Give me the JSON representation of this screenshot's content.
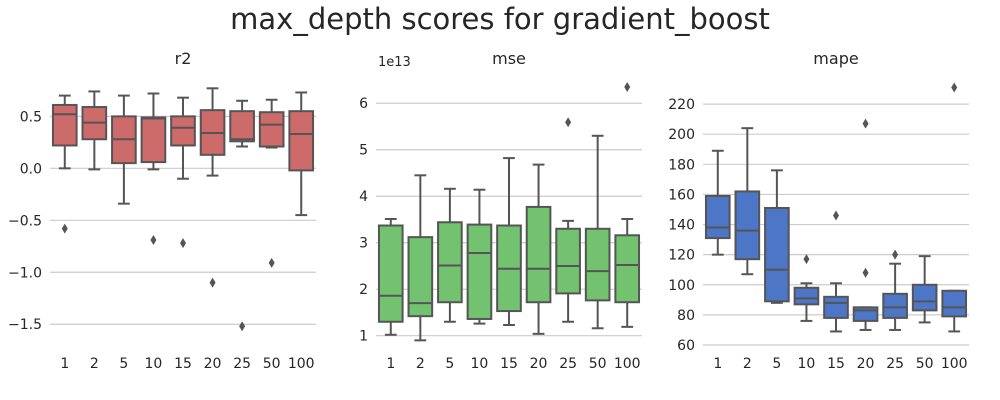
{
  "suptitle": "max_depth scores for gradient_boost",
  "colors": {
    "r2": "#cd6a6a",
    "mse": "#72c26f",
    "mape": "#4d76c6",
    "stroke": "#555555",
    "grid": "#cccccc"
  },
  "chart_data": [
    {
      "type": "box",
      "title": "r2",
      "categories": [
        "1",
        "2",
        "5",
        "10",
        "15",
        "20",
        "25",
        "50",
        "100"
      ],
      "ylim": [
        -1.7,
        0.85
      ],
      "yticks": [
        -1.5,
        -1.0,
        -0.5,
        0.0,
        0.5
      ],
      "ytick_labels": [
        "−1.5",
        "−1.0",
        "−0.5",
        "0.0",
        "0.5"
      ],
      "offset_label": "",
      "grid": true,
      "boxes": [
        {
          "lw": 0.0,
          "q1": 0.22,
          "med": 0.52,
          "q3": 0.61,
          "hw": 0.7,
          "fliers": [
            -0.58
          ]
        },
        {
          "lw": -0.01,
          "q1": 0.28,
          "med": 0.44,
          "q3": 0.59,
          "hw": 0.74,
          "fliers": []
        },
        {
          "lw": -0.34,
          "q1": 0.05,
          "med": 0.28,
          "q3": 0.5,
          "hw": 0.7,
          "fliers": []
        },
        {
          "lw": -0.01,
          "q1": 0.06,
          "med": 0.48,
          "q3": 0.49,
          "hw": 0.72,
          "fliers": [
            -0.69
          ]
        },
        {
          "lw": -0.1,
          "q1": 0.22,
          "med": 0.39,
          "q3": 0.5,
          "hw": 0.68,
          "fliers": [
            -0.72
          ]
        },
        {
          "lw": -0.07,
          "q1": 0.13,
          "med": 0.34,
          "q3": 0.56,
          "hw": 0.77,
          "fliers": [
            -1.1
          ]
        },
        {
          "lw": 0.21,
          "q1": 0.26,
          "med": 0.28,
          "q3": 0.55,
          "hw": 0.65,
          "fliers": [
            -1.52
          ]
        },
        {
          "lw": 0.2,
          "q1": 0.21,
          "med": 0.42,
          "q3": 0.54,
          "hw": 0.66,
          "fliers": [
            -0.91
          ]
        },
        {
          "lw": -0.45,
          "q1": -0.02,
          "med": 0.33,
          "q3": 0.55,
          "hw": 0.73,
          "fliers": []
        }
      ]
    },
    {
      "type": "box",
      "title": "mse",
      "categories": [
        "1",
        "2",
        "5",
        "10",
        "15",
        "20",
        "25",
        "50",
        "100"
      ],
      "ylim": [
        0.8,
        6.5
      ],
      "yticks": [
        1,
        2,
        3,
        4,
        5,
        6
      ],
      "ytick_labels": [
        "1",
        "2",
        "3",
        "4",
        "5",
        "6"
      ],
      "offset_label": "1e13",
      "grid": true,
      "boxes": [
        {
          "lw": 1.02,
          "q1": 1.3,
          "med": 1.86,
          "q3": 3.37,
          "hw": 3.51,
          "fliers": []
        },
        {
          "lw": 0.9,
          "q1": 1.42,
          "med": 1.7,
          "q3": 3.12,
          "hw": 4.45,
          "fliers": []
        },
        {
          "lw": 1.3,
          "q1": 1.72,
          "med": 2.51,
          "q3": 3.44,
          "hw": 4.16,
          "fliers": []
        },
        {
          "lw": 1.26,
          "q1": 1.36,
          "med": 2.78,
          "q3": 3.39,
          "hw": 4.14,
          "fliers": []
        },
        {
          "lw": 1.23,
          "q1": 1.53,
          "med": 2.44,
          "q3": 3.37,
          "hw": 4.82,
          "fliers": []
        },
        {
          "lw": 1.04,
          "q1": 1.72,
          "med": 2.44,
          "q3": 3.77,
          "hw": 4.68,
          "fliers": []
        },
        {
          "lw": 1.3,
          "q1": 1.91,
          "med": 2.5,
          "q3": 3.3,
          "hw": 3.47,
          "fliers": [
            5.59
          ]
        },
        {
          "lw": 1.16,
          "q1": 1.76,
          "med": 2.39,
          "q3": 3.3,
          "hw": 5.3,
          "fliers": []
        },
        {
          "lw": 1.19,
          "q1": 1.72,
          "med": 2.52,
          "q3": 3.16,
          "hw": 3.51,
          "fliers": [
            6.35
          ]
        }
      ]
    },
    {
      "type": "box",
      "title": "mape",
      "categories": [
        "1",
        "2",
        "5",
        "10",
        "15",
        "20",
        "25",
        "50",
        "100"
      ],
      "ylim": [
        60,
        236
      ],
      "yticks": [
        60,
        80,
        100,
        120,
        140,
        160,
        180,
        200,
        220
      ],
      "ytick_labels": [
        "60",
        "80",
        "100",
        "120",
        "140",
        "160",
        "180",
        "200",
        "220"
      ],
      "offset_label": "",
      "grid": true,
      "boxes": [
        {
          "lw": 120,
          "q1": 131,
          "med": 138,
          "q3": 159,
          "hw": 189,
          "fliers": []
        },
        {
          "lw": 107,
          "q1": 117,
          "med": 136,
          "q3": 162,
          "hw": 204,
          "fliers": []
        },
        {
          "lw": 88,
          "q1": 89,
          "med": 110,
          "q3": 151,
          "hw": 176,
          "fliers": []
        },
        {
          "lw": 76,
          "q1": 87,
          "med": 91,
          "q3": 98,
          "hw": 101,
          "fliers": [
            117
          ]
        },
        {
          "lw": 69,
          "q1": 78,
          "med": 88,
          "q3": 92,
          "hw": 101,
          "fliers": [
            146
          ]
        },
        {
          "lw": 70,
          "q1": 76,
          "med": 83,
          "q3": 85,
          "hw": 85,
          "fliers": [
            108,
            207
          ]
        },
        {
          "lw": 70,
          "q1": 78,
          "med": 85,
          "q3": 94,
          "hw": 114,
          "fliers": [
            120
          ]
        },
        {
          "lw": 75,
          "q1": 83,
          "med": 89,
          "q3": 100,
          "hw": 119,
          "fliers": []
        },
        {
          "lw": 69,
          "q1": 79,
          "med": 85,
          "q3": 96,
          "hw": 96,
          "fliers": [
            231
          ]
        }
      ]
    }
  ]
}
